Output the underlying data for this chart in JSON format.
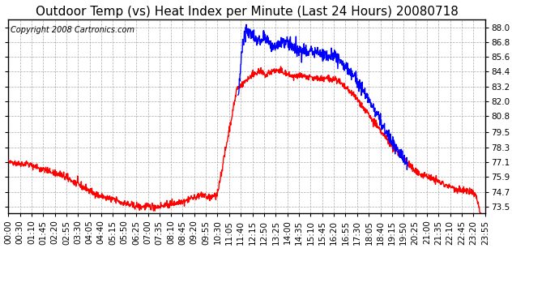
{
  "title": "Outdoor Temp (vs) Heat Index per Minute (Last 24 Hours) 20080718",
  "copyright": "Copyright 2008 Cartronics.com",
  "y_ticks": [
    73.5,
    74.7,
    75.9,
    77.1,
    78.3,
    79.5,
    80.8,
    82.0,
    83.2,
    84.4,
    85.6,
    86.8,
    88.0
  ],
  "ylim": [
    73.0,
    88.6
  ],
  "x_labels": [
    "00:00",
    "00:30",
    "01:10",
    "01:45",
    "02:20",
    "02:55",
    "03:30",
    "04:05",
    "04:40",
    "05:15",
    "05:50",
    "06:25",
    "07:00",
    "07:35",
    "08:10",
    "08:45",
    "09:20",
    "09:55",
    "10:30",
    "11:05",
    "11:40",
    "12:15",
    "12:50",
    "13:25",
    "14:00",
    "14:35",
    "15:10",
    "15:45",
    "16:20",
    "16:55",
    "17:30",
    "18:05",
    "18:40",
    "19:15",
    "19:50",
    "20:25",
    "21:00",
    "21:35",
    "22:10",
    "22:45",
    "23:20",
    "23:55"
  ],
  "temp_color": "#ff0000",
  "heat_color": "#0000ff",
  "bg_color": "#ffffff",
  "grid_color": "#aaaaaa",
  "title_fontsize": 11,
  "copyright_fontsize": 7,
  "tick_fontsize": 7.5,
  "line_width": 1.0
}
